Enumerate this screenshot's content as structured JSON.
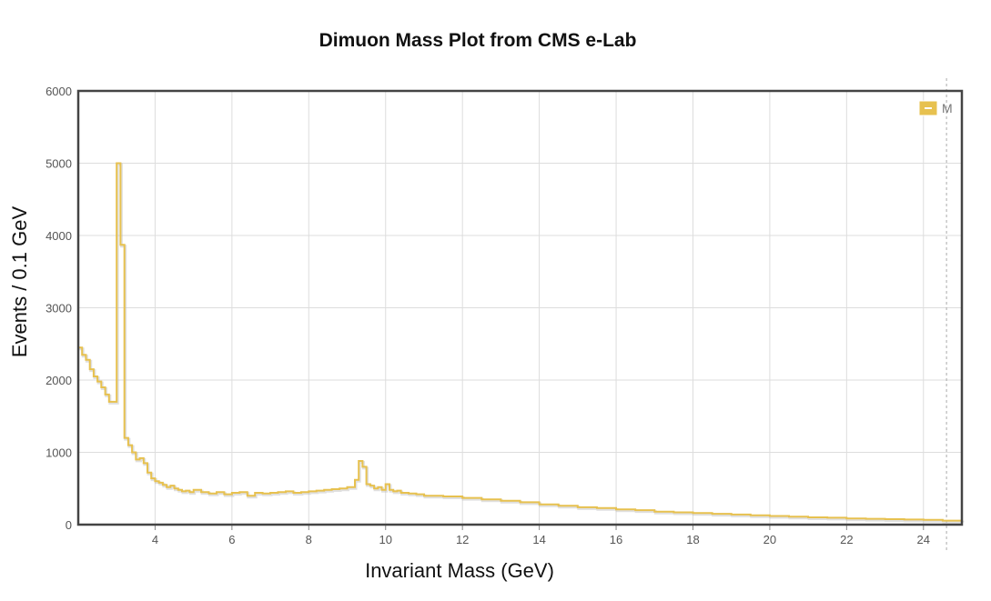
{
  "chart_data": {
    "type": "line",
    "style": "step-histogram",
    "title": "Dimuon Mass Plot from CMS e-Lab",
    "xlabel": "Invariant Mass (GeV)",
    "ylabel": "Events / 0.1 GeV",
    "xlim": [
      2.0,
      25.0
    ],
    "ylim": [
      0,
      6000
    ],
    "x_ticks": [
      "4",
      "6",
      "8",
      "10",
      "12",
      "14",
      "16",
      "18",
      "20",
      "22",
      "24"
    ],
    "y_ticks": [
      "0",
      "1000",
      "2000",
      "3000",
      "4000",
      "5000",
      "6000"
    ],
    "grid": true,
    "legend_position": "top-right",
    "series": [
      {
        "name": "M",
        "color": "#e7c14f",
        "bin_width": 0.1,
        "x": [
          2.0,
          2.1,
          2.2,
          2.3,
          2.4,
          2.5,
          2.6,
          2.7,
          2.8,
          2.9,
          3.0,
          3.1,
          3.2,
          3.3,
          3.4,
          3.5,
          3.6,
          3.7,
          3.8,
          3.9,
          4.0,
          4.1,
          4.2,
          4.3,
          4.4,
          4.5,
          4.6,
          4.7,
          4.8,
          4.9,
          5.0,
          5.2,
          5.4,
          5.6,
          5.8,
          6.0,
          6.2,
          6.4,
          6.6,
          6.8,
          7.0,
          7.2,
          7.4,
          7.6,
          7.8,
          8.0,
          8.2,
          8.4,
          8.6,
          8.8,
          9.0,
          9.2,
          9.3,
          9.4,
          9.5,
          9.6,
          9.7,
          9.8,
          9.9,
          10.0,
          10.1,
          10.2,
          10.3,
          10.4,
          10.6,
          10.8,
          11.0,
          11.5,
          12.0,
          12.5,
          13.0,
          13.5,
          14.0,
          14.5,
          15.0,
          15.5,
          16.0,
          16.5,
          17.0,
          17.5,
          18.0,
          18.5,
          19.0,
          19.5,
          20.0,
          20.5,
          21.0,
          21.5,
          22.0,
          22.5,
          23.0,
          23.5,
          24.0,
          24.5,
          25.0
        ],
        "values": [
          2450,
          2350,
          2280,
          2150,
          2050,
          1980,
          1900,
          1800,
          1700,
          1700,
          5000,
          3870,
          1200,
          1100,
          1000,
          900,
          920,
          850,
          720,
          640,
          600,
          580,
          550,
          520,
          540,
          500,
          480,
          460,
          470,
          450,
          480,
          450,
          430,
          450,
          420,
          440,
          450,
          400,
          440,
          430,
          440,
          450,
          460,
          440,
          450,
          460,
          470,
          480,
          490,
          500,
          520,
          620,
          880,
          800,
          560,
          540,
          500,
          520,
          480,
          560,
          480,
          460,
          470,
          440,
          430,
          420,
          400,
          390,
          370,
          350,
          330,
          310,
          280,
          260,
          240,
          230,
          210,
          200,
          180,
          170,
          160,
          150,
          140,
          130,
          120,
          110,
          100,
          95,
          85,
          80,
          75,
          70,
          65,
          55,
          50
        ]
      }
    ]
  }
}
